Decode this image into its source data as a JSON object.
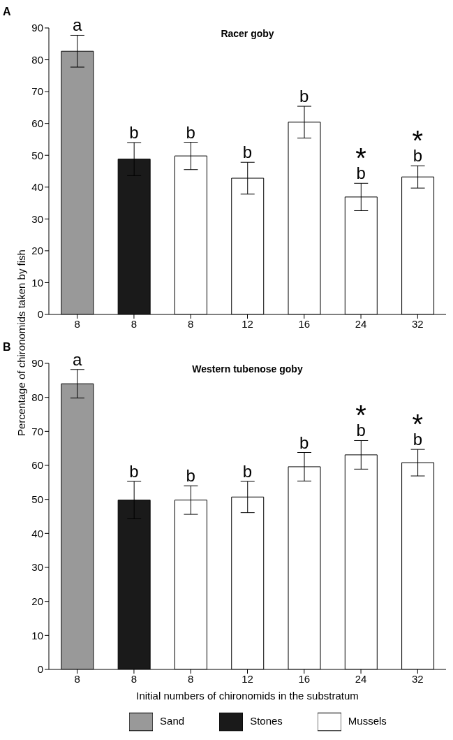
{
  "chart_data": [
    {
      "type": "bar",
      "title": "Racer goby",
      "ylabel": "Percentage of chironomids taken by fish",
      "annotations": [
        "A",
        {
          "text": "*",
          "x": "24",
          "y": 36.9
        },
        {
          "text": "*",
          "x": "32",
          "y": 43.2
        }
      ],
      "categories": [
        "8",
        "8",
        "8",
        "12",
        "16",
        "24",
        "32"
      ],
      "stacked": true,
      "series": [
        {
          "color": "#999999",
          "values": [
            82.7,
            null,
            null,
            null,
            null,
            null,
            null
          ],
          "errors": [
            5,
            null,
            null,
            null,
            null,
            null,
            null
          ],
          "value_labels": [
            "a",
            null,
            null,
            null,
            null,
            null,
            null
          ]
        },
        {
          "color": "#1a1a1a",
          "values": [
            null,
            48.8,
            null,
            null,
            null,
            null,
            null
          ],
          "errors": [
            null,
            5.2,
            null,
            null,
            null,
            null,
            null
          ],
          "value_labels": [
            null,
            "b",
            null,
            null,
            null,
            null,
            null
          ]
        },
        {
          "color": "#ffffff",
          "values": [
            null,
            null,
            49.8,
            42.8,
            60.4,
            36.9,
            43.2
          ],
          "errors": [
            null,
            null,
            4.3,
            5,
            5,
            4.3,
            3.5
          ],
          "value_labels": [
            null,
            null,
            "b",
            "b",
            "b",
            "b",
            "b"
          ]
        }
      ],
      "ylim": [
        0,
        90
      ],
      "yticks": [
        0,
        10,
        20,
        30,
        40,
        50,
        60,
        70,
        80,
        90
      ],
      "grid": false,
      "legend": false
    },
    {
      "type": "bar",
      "title": "Western tubenose goby",
      "xlabel": "Initial numbers of chironomids in the substratum",
      "annotations": [
        "B",
        {
          "text": "*",
          "x": "24",
          "y": 63.1
        },
        {
          "text": "*",
          "x": "32",
          "y": 60.8
        }
      ],
      "categories": [
        "8",
        "8",
        "8",
        "12",
        "16",
        "24",
        "32"
      ],
      "stacked": true,
      "series": [
        {
          "name": "Sand",
          "color": "#999999",
          "values": [
            84,
            null,
            null,
            null,
            null,
            null,
            null
          ],
          "errors": [
            4.2,
            null,
            null,
            null,
            null,
            null,
            null
          ],
          "value_labels": [
            "a",
            null,
            null,
            null,
            null,
            null,
            null
          ]
        },
        {
          "name": "Stones",
          "color": "#1a1a1a",
          "values": [
            null,
            49.8,
            null,
            null,
            null,
            null,
            null
          ],
          "errors": [
            null,
            5.5,
            null,
            null,
            null,
            null,
            null
          ],
          "value_labels": [
            null,
            "b",
            null,
            null,
            null,
            null,
            null
          ]
        },
        {
          "name": "Mussels",
          "color": "#ffffff",
          "values": [
            null,
            null,
            49.8,
            50.7,
            59.6,
            63.1,
            60.8
          ],
          "errors": [
            null,
            null,
            4.2,
            4.6,
            4.2,
            4.2,
            3.9
          ],
          "value_labels": [
            null,
            null,
            "b",
            "b",
            "b",
            "b",
            "b"
          ]
        }
      ],
      "ylim": [
        0,
        90
      ],
      "yticks": [
        0,
        10,
        20,
        30,
        40,
        50,
        60,
        70,
        80,
        90
      ],
      "grid": false,
      "legend": "bottom"
    }
  ]
}
